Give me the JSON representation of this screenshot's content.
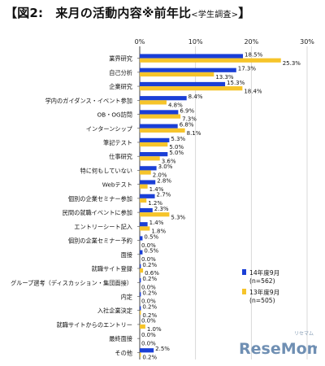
{
  "header": {
    "title": "【図2:　来月の活動内容※前年比",
    "subtitle": "<学生調査>",
    "close": "】"
  },
  "watermark": {
    "text": "ReseMom",
    "small": "リセマム"
  },
  "chart_data": {
    "type": "bar",
    "orientation": "horizontal",
    "xlim": [
      0,
      30
    ],
    "xticks": [
      "0%",
      "10%",
      "20%",
      "30%"
    ],
    "tick_values": [
      0,
      10,
      20,
      30
    ],
    "grid": true,
    "legend_position": "bottom-right",
    "colors": {
      "blue": "#1a3fd6",
      "yellow": "#f6c42a"
    },
    "categories": [
      "業界研究",
      "自己分析",
      "企業研究",
      "学内のガイダンス・イベント参加",
      "OB・OG訪問",
      "インターンシップ",
      "筆記テスト",
      "仕事研究",
      "特に何もしていない",
      "Webテスト",
      "個別の企業セミナー参加",
      "民間の就職イベントに参加",
      "エントリーシート記入",
      "個別の企業セミナー予約",
      "面接",
      "就職サイト登録",
      "グループ選考（ディスカッション・集団面接）",
      "内定",
      "入社企業決定",
      "就職サイトからのエントリー",
      "最終面接",
      "その他"
    ],
    "series": [
      {
        "name": "14年度9月",
        "n": "(n=562)",
        "color": "#1a3fd6",
        "values": [
          18.5,
          17.3,
          15.3,
          8.4,
          6.9,
          6.8,
          5.3,
          5.0,
          3.0,
          2.8,
          2.7,
          2.3,
          1.4,
          0.5,
          0.5,
          0.2,
          0.2,
          0.2,
          0.2,
          0.0,
          0.0,
          2.5
        ],
        "labels": [
          "18.5%",
          "17.3%",
          "15.3%",
          "8.4%",
          "6.9%",
          "6.8%",
          "5.3%",
          "5.0%",
          "3.0%",
          "2.8%",
          "2.7%",
          "2.3%",
          "1.4%",
          "0.5%",
          "0.5%",
          "0.2%",
          "0.2%",
          "0.2%",
          "0.2%",
          "0.0%",
          "0.0%",
          "2.5%"
        ]
      },
      {
        "name": "13年度9月",
        "n": "(n=505)",
        "color": "#f6c42a",
        "values": [
          25.3,
          13.3,
          18.4,
          4.8,
          7.3,
          8.1,
          5.0,
          3.6,
          2.0,
          1.4,
          1.2,
          5.3,
          1.8,
          0.0,
          0.0,
          0.6,
          0.0,
          0.0,
          0.2,
          1.0,
          0.0,
          0.2
        ],
        "labels": [
          "25.3%",
          "13.3%",
          "18.4%",
          "4.8%",
          "7.3%",
          "8.1%",
          "5.0%",
          "3.6%",
          "2.0%",
          "1.4%",
          "1.2%",
          "5.3%",
          "1.8%",
          "0.0%",
          "0.0%",
          "0.6%",
          "0.0%",
          "0.0%",
          "0.2%",
          "1.0%",
          "0.0%",
          "0.2%"
        ]
      }
    ]
  }
}
